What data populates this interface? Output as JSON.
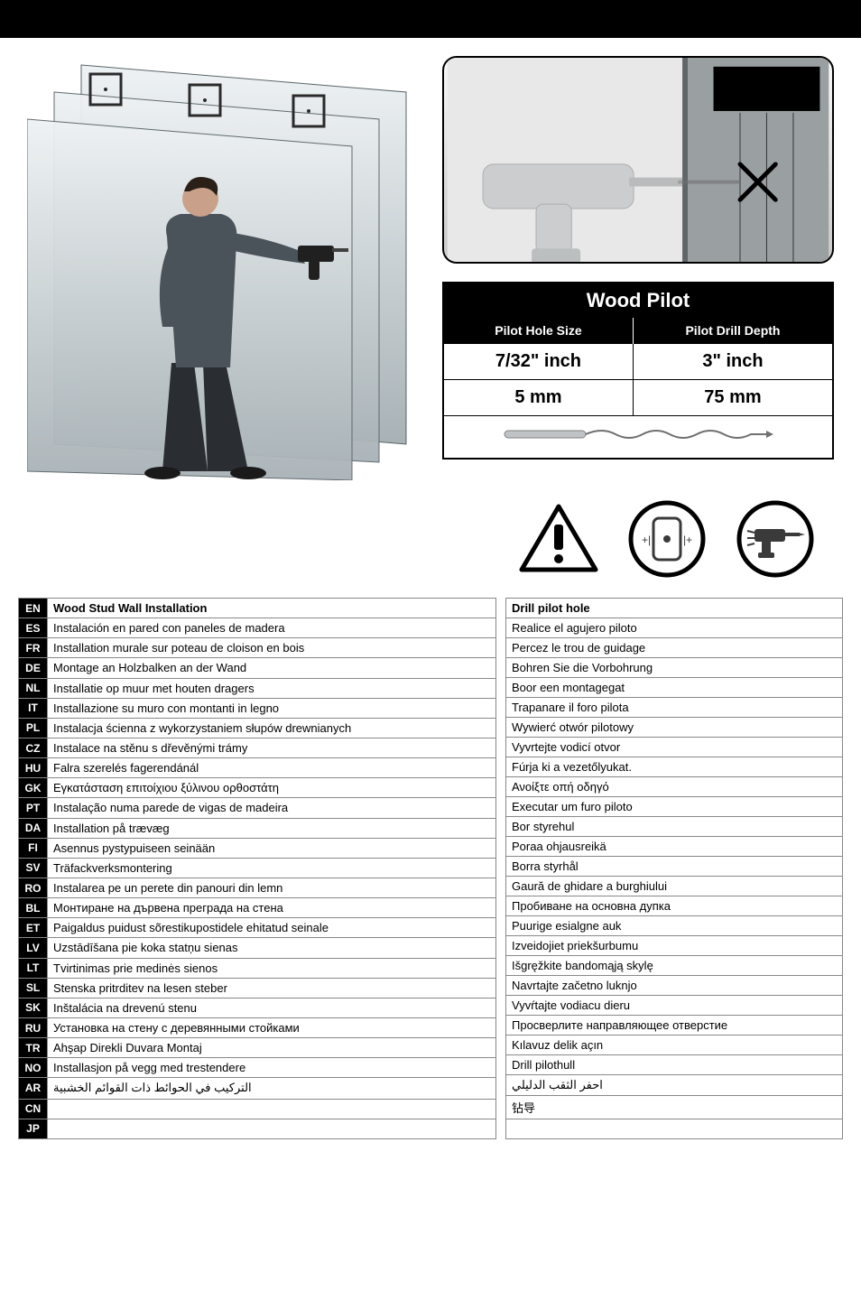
{
  "pilot_table": {
    "header": "Wood Pilot",
    "col1_header": "Pilot Hole Size",
    "col2_header": "Pilot Drill Depth",
    "row1_col1": "7/32\" inch",
    "row1_col2": "3\" inch",
    "row2_col1": "5 mm",
    "row2_col2": "75 mm"
  },
  "lang_rows": [
    {
      "code": "EN",
      "left": "Wood Stud Wall Installation",
      "right": "Drill pilot hole",
      "bold": true
    },
    {
      "code": "ES",
      "left": "Instalación en pared con paneles de madera",
      "right": "Realice el agujero piloto"
    },
    {
      "code": "FR",
      "left": "Installation murale sur poteau de cloison en bois",
      "right": "Percez le trou de guidage"
    },
    {
      "code": "DE",
      "left": "Montage an Holzbalken an der Wand",
      "right": "Bohren Sie die Vorbohrung"
    },
    {
      "code": "NL",
      "left": "Installatie op muur met houten dragers",
      "right": "Boor een montagegat"
    },
    {
      "code": "IT",
      "left": "Installazione su muro con montanti in legno",
      "right": "Trapanare il foro pilota"
    },
    {
      "code": "PL",
      "left": "Instalacja ścienna z wykorzystaniem słupów drewnianych",
      "right": "Wywierć otwór pilotowy"
    },
    {
      "code": "CZ",
      "left": "Instalace na stěnu s dřevěnými trámy",
      "right": "Vyvrtejte vodicí otvor"
    },
    {
      "code": "HU",
      "left": "Falra szerelés fagerendánál",
      "right": "Fúrja ki a vezetőlyukat."
    },
    {
      "code": "GK",
      "left": "Εγκατάσταση επιτοίχιου ξύλινου ορθοστάτη",
      "right": "Ανοίξτε οπή οδηγό"
    },
    {
      "code": "PT",
      "left": "Instalação numa parede de vigas de madeira",
      "right": "Executar um furo piloto"
    },
    {
      "code": "DA",
      "left": "Installation på trævæg",
      "right": "Bor styrehul"
    },
    {
      "code": "FI",
      "left": "Asennus pystypuiseen seinään",
      "right": "Poraa ohjausreikä"
    },
    {
      "code": "SV",
      "left": "Träfackverksmontering",
      "right": "Borra styrhål"
    },
    {
      "code": "RO",
      "left": "Instalarea pe un perete din panouri din lemn",
      "right": "Gaură de ghidare a burghiului"
    },
    {
      "code": "BL",
      "left": "Монтиране на дървена преграда на стена",
      "right": "Пробиване на основна дупка"
    },
    {
      "code": "ET",
      "left": "Paigaldus puidust sõrestikupostidele ehitatud seinale",
      "right": "Puurige esialgne auk"
    },
    {
      "code": "LV",
      "left": "Uzstādīšana pie koka statņu sienas",
      "right": "Izveidojiet priekšurbumu"
    },
    {
      "code": "LT",
      "left": "Tvirtinimas prie medinės sienos",
      "right": "Išgręžkite bandomąją skylę"
    },
    {
      "code": "SL",
      "left": "Stenska pritrditev na lesen steber",
      "right": "Navrtajte začetno luknjo"
    },
    {
      "code": "SK",
      "left": "Inštalácia na drevenú stenu",
      "right": "Vyvŕtajte vodiacu dieru"
    },
    {
      "code": "RU",
      "left": "Установка на стену с деревянными стойками",
      "right": "Просверлите направляющее отверстие"
    },
    {
      "code": "TR",
      "left": "Ahşap Direkli Duvara Montaj",
      "right": "Kılavuz delik açın"
    },
    {
      "code": "NO",
      "left": "Installasjon på vegg med trestendere",
      "right": "Drill pilothull"
    },
    {
      "code": "AR",
      "left": "التركيب في الحوائط ذات القوائم الخشبية",
      "right": "احفر الثقب الدليلي",
      "rtl": true
    },
    {
      "code": "CN",
      "left": "",
      "right": "钻导"
    },
    {
      "code": "JP",
      "left": "",
      "right": ""
    }
  ],
  "colors": {
    "black": "#000000",
    "white": "#ffffff",
    "grey_border": "#888888",
    "panel_light": "#e8ecee",
    "panel_dark": "#aeb6ba"
  },
  "icons": {
    "warning": "warning-triangle-icon",
    "stud_finder": "stud-finder-icon",
    "drill": "drill-icon"
  }
}
